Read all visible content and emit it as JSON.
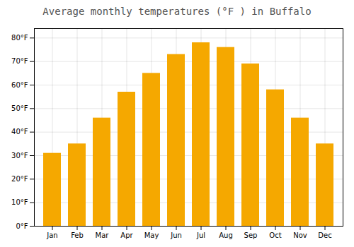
{
  "chart_data": {
    "type": "bar",
    "title": "Average monthly temperatures (°F ) in Buffalo",
    "categories": [
      "Jan",
      "Feb",
      "Mar",
      "Apr",
      "May",
      "Jun",
      "Jul",
      "Aug",
      "Sep",
      "Oct",
      "Nov",
      "Dec"
    ],
    "values": [
      31,
      35,
      46,
      57,
      65,
      73,
      78,
      76,
      69,
      58,
      46,
      35
    ],
    "color": "#F5A800",
    "ylim": [
      0,
      84
    ],
    "yticks": [
      {
        "value": 0,
        "label": "0°F"
      },
      {
        "value": 10,
        "label": "10°F"
      },
      {
        "value": 20,
        "label": "20°F"
      },
      {
        "value": 30,
        "label": "30°F"
      },
      {
        "value": 40,
        "label": "40°F"
      },
      {
        "value": 50,
        "label": "50°F"
      },
      {
        "value": 60,
        "label": "60°F"
      },
      {
        "value": 70,
        "label": "70°F"
      },
      {
        "value": 80,
        "label": "80°F"
      }
    ],
    "grid": true
  }
}
